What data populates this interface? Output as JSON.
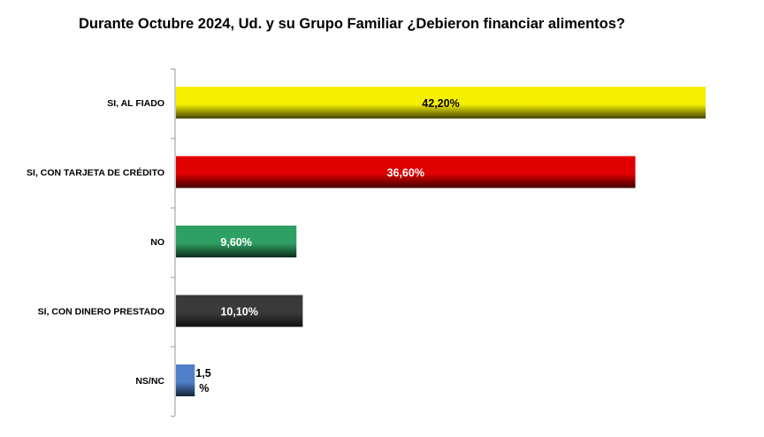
{
  "chart_data": {
    "type": "bar",
    "orientation": "horizontal",
    "title": "Durante Octubre 2024, Ud. y su Grupo Familiar ¿Debieron financiar alimentos?",
    "categories": [
      "SI, AL FIADO",
      "SI, CON TARJETA DE CRÉDITO",
      "NO",
      "SI, CON DINERO PRESTADO",
      "NS/NC"
    ],
    "values": [
      42.2,
      36.6,
      9.6,
      10.1,
      1.5
    ],
    "data_labels": [
      "42,20%",
      "36,60%",
      "9,60%",
      "10,10%",
      "1,5 %"
    ],
    "bar_colors": [
      "#f5f000",
      "#e00000",
      "#2fa063",
      "#3a3a3a",
      "#4f7fc8"
    ],
    "label_colors": [
      "#000000",
      "#ffffff",
      "#ffffff",
      "#ffffff",
      "#000000"
    ],
    "xlim": [
      0,
      42.2
    ],
    "grid": false,
    "legend": "none"
  }
}
